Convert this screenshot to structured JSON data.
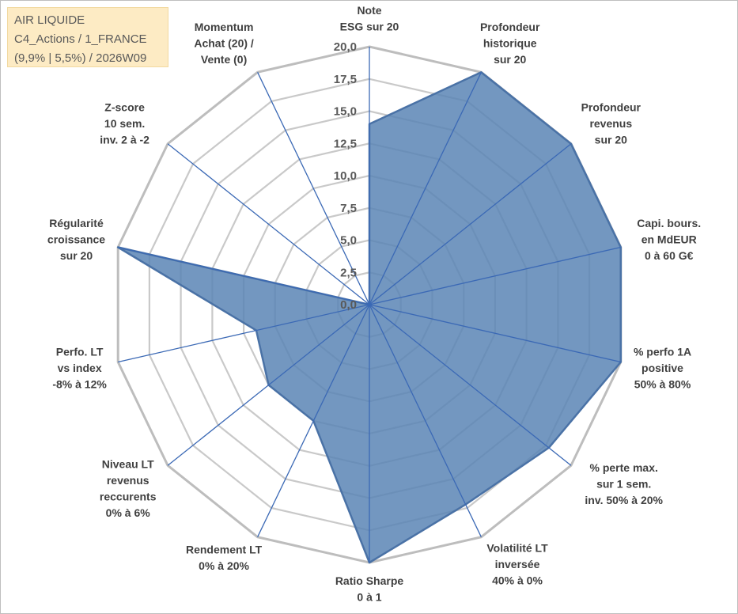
{
  "info_box": {
    "line1": "AIR LIQUIDE",
    "line2": "C4_Actions / 1_FRANCE",
    "line3": "(9,9% | 5,5%) / 2026W09"
  },
  "colors": {
    "fill": "#5b85b5",
    "fill_edge": "#4a72a6",
    "spoke": "#3b69b5",
    "grid": "#c9c9c9",
    "outer_grid": "#bdbdbd",
    "info_bg": "#fdebc4"
  },
  "chart_data": {
    "type": "radar",
    "title": "",
    "rmin": 0,
    "rmax": 20,
    "tick_step": 2.5,
    "tick_labels": [
      "0,0",
      "2,5",
      "5,0",
      "7,5",
      "10,0",
      "12,5",
      "15,0",
      "17,5",
      "20,0"
    ],
    "axes": [
      {
        "lines": [
          "Note",
          "ESG sur 20"
        ],
        "value": 14.0
      },
      {
        "lines": [
          "Profondeur",
          "historique",
          "sur 20"
        ],
        "value": 20.0
      },
      {
        "lines": [
          "Profondeur",
          "revenus",
          "sur 20"
        ],
        "value": 20.0
      },
      {
        "lines": [
          "Capi. bours.",
          "en MdEUR",
          "0 à 60 G€"
        ],
        "value": 20.0
      },
      {
        "lines": [
          "% perfo 1A",
          "positive",
          "50% à 80%"
        ],
        "value": 20.0
      },
      {
        "lines": [
          "% perte max.",
          "sur 1 sem.",
          "inv. 50% à 20%"
        ],
        "value": 17.8
      },
      {
        "lines": [
          "Volatilité LT",
          "inversée",
          "40% à 0%"
        ],
        "value": 17.2
      },
      {
        "lines": [
          "Ratio Sharpe",
          "0 à 1"
        ],
        "value": 20.0
      },
      {
        "lines": [
          "Rendement LT",
          "0% à 20%"
        ],
        "value": 10.0
      },
      {
        "lines": [
          "Niveau LT",
          "revenus",
          "reccurents",
          "0% à 6%"
        ],
        "value": 10.0
      },
      {
        "lines": [
          "Perfo. LT",
          "vs index",
          "-8% à 12%"
        ],
        "value": 9.0
      },
      {
        "lines": [
          "Régularité",
          "croissance",
          "sur 20"
        ],
        "value": 20.0
      },
      {
        "lines": [
          "Z-score",
          "10 sem.",
          "inv. 2 à -2"
        ],
        "value": 0.0
      },
      {
        "lines": [
          "Momentum",
          "Achat (20) /",
          "Vente (0)"
        ],
        "value": 0.0
      }
    ]
  }
}
